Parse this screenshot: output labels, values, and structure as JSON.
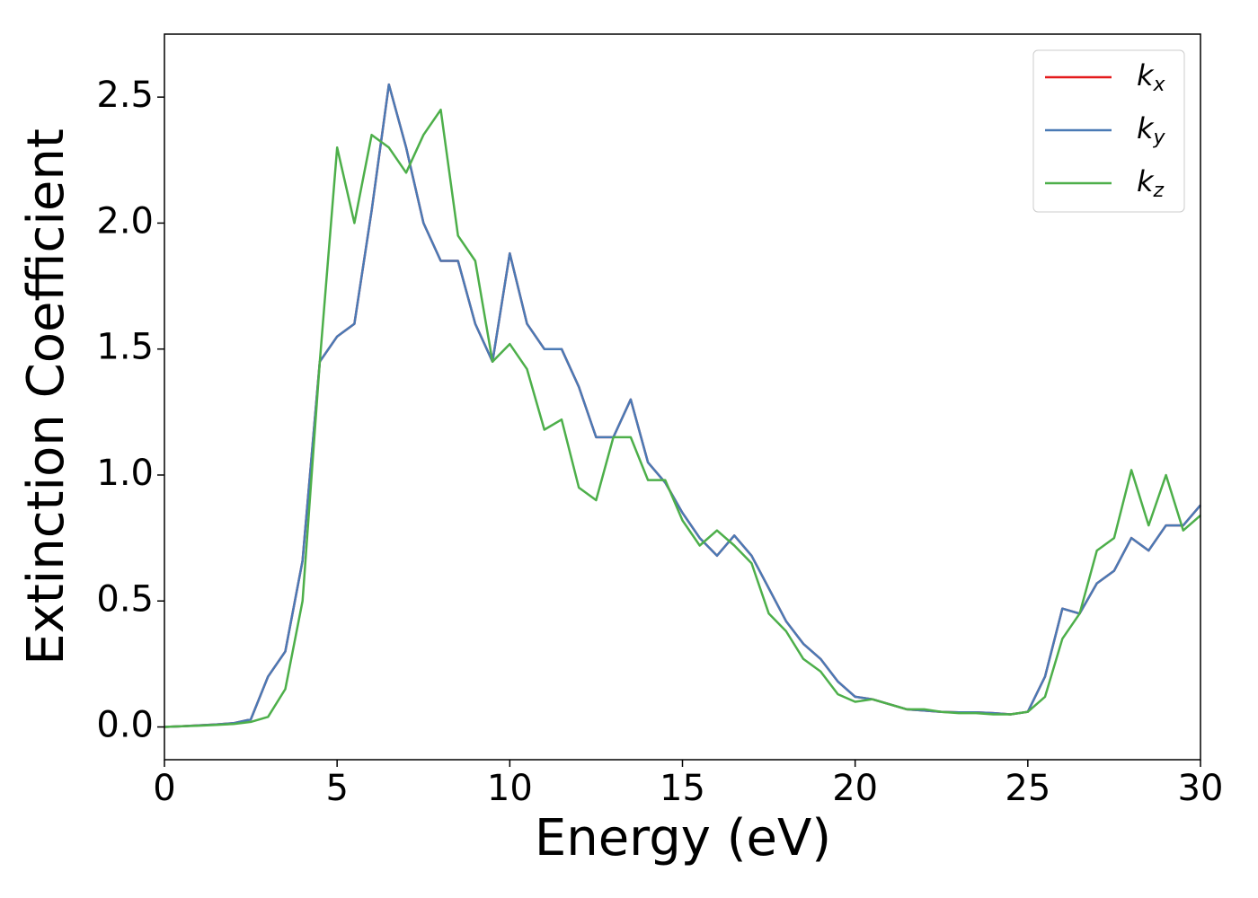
{
  "chart_data": {
    "type": "line",
    "x_label": "Energy (eV)",
    "y_label": "Extinction Coefficient",
    "x": [
      0,
      0.5,
      1,
      1.5,
      2,
      2.5,
      3,
      3.5,
      4,
      4.5,
      5,
      5.5,
      6,
      6.5,
      7,
      7.5,
      8,
      8.5,
      9,
      9.5,
      10,
      10.5,
      11,
      11.5,
      12,
      12.5,
      13,
      13.5,
      14,
      14.5,
      15,
      15.5,
      16,
      16.5,
      17,
      17.5,
      18,
      18.5,
      19,
      19.5,
      20,
      20.5,
      21,
      21.5,
      22,
      22.5,
      23,
      23.5,
      24,
      24.5,
      25,
      25.5,
      26,
      26.5,
      27,
      27.5,
      28,
      28.5,
      29,
      29.5,
      30
    ],
    "series": [
      {
        "name": "kx",
        "color": "#e41a1c",
        "values": [
          0,
          0.003,
          0.006,
          0.01,
          0.015,
          0.03,
          0.2,
          0.3,
          0.66,
          1.45,
          1.55,
          1.6,
          2.05,
          2.55,
          2.3,
          2.0,
          1.85,
          1.85,
          1.6,
          1.45,
          1.88,
          1.6,
          1.5,
          1.5,
          1.35,
          1.15,
          1.15,
          1.3,
          1.05,
          0.97,
          0.85,
          0.75,
          0.68,
          0.76,
          0.68,
          0.55,
          0.42,
          0.33,
          0.27,
          0.18,
          0.12,
          0.11,
          0.09,
          0.07,
          0.065,
          0.06,
          0.058,
          0.058,
          0.055,
          0.05,
          0.06,
          0.2,
          0.47,
          0.45,
          0.57,
          0.62,
          0.75,
          0.7,
          0.8,
          0.8,
          0.88
        ]
      },
      {
        "name": "ky",
        "color": "#4a7ab5",
        "values": [
          0,
          0.003,
          0.006,
          0.01,
          0.015,
          0.03,
          0.2,
          0.3,
          0.66,
          1.45,
          1.55,
          1.6,
          2.05,
          2.55,
          2.3,
          2.0,
          1.85,
          1.85,
          1.6,
          1.45,
          1.88,
          1.6,
          1.5,
          1.5,
          1.35,
          1.15,
          1.15,
          1.3,
          1.05,
          0.97,
          0.85,
          0.75,
          0.68,
          0.76,
          0.68,
          0.55,
          0.42,
          0.33,
          0.27,
          0.18,
          0.12,
          0.11,
          0.09,
          0.07,
          0.065,
          0.06,
          0.058,
          0.058,
          0.055,
          0.05,
          0.06,
          0.2,
          0.47,
          0.45,
          0.57,
          0.62,
          0.75,
          0.7,
          0.8,
          0.8,
          0.88
        ]
      },
      {
        "name": "kz",
        "color": "#4daf4a",
        "values": [
          0,
          0.003,
          0.005,
          0.008,
          0.012,
          0.02,
          0.04,
          0.15,
          0.5,
          1.45,
          2.3,
          2.0,
          2.35,
          2.3,
          2.2,
          2.35,
          2.45,
          1.95,
          1.85,
          1.45,
          1.52,
          1.42,
          1.18,
          1.22,
          0.95,
          0.9,
          1.15,
          1.15,
          0.98,
          0.98,
          0.82,
          0.72,
          0.78,
          0.72,
          0.65,
          0.45,
          0.38,
          0.27,
          0.22,
          0.13,
          0.1,
          0.11,
          0.09,
          0.07,
          0.07,
          0.06,
          0.055,
          0.055,
          0.05,
          0.05,
          0.06,
          0.12,
          0.35,
          0.45,
          0.7,
          0.75,
          1.02,
          0.8,
          1.0,
          0.78,
          0.84
        ]
      }
    ],
    "xlim": [
      0,
      30
    ],
    "xticks": [
      0,
      5,
      10,
      15,
      20,
      25,
      30
    ],
    "ylim": [
      -0.13,
      2.75
    ],
    "yticks": [
      {
        "value": 0,
        "label": "0.0"
      },
      0.5,
      {
        "value": 1,
        "label": "1.0"
      },
      1.5,
      {
        "value": 2,
        "label": "2.0"
      },
      2.5
    ],
    "legend": "upper right",
    "grid": false
  }
}
